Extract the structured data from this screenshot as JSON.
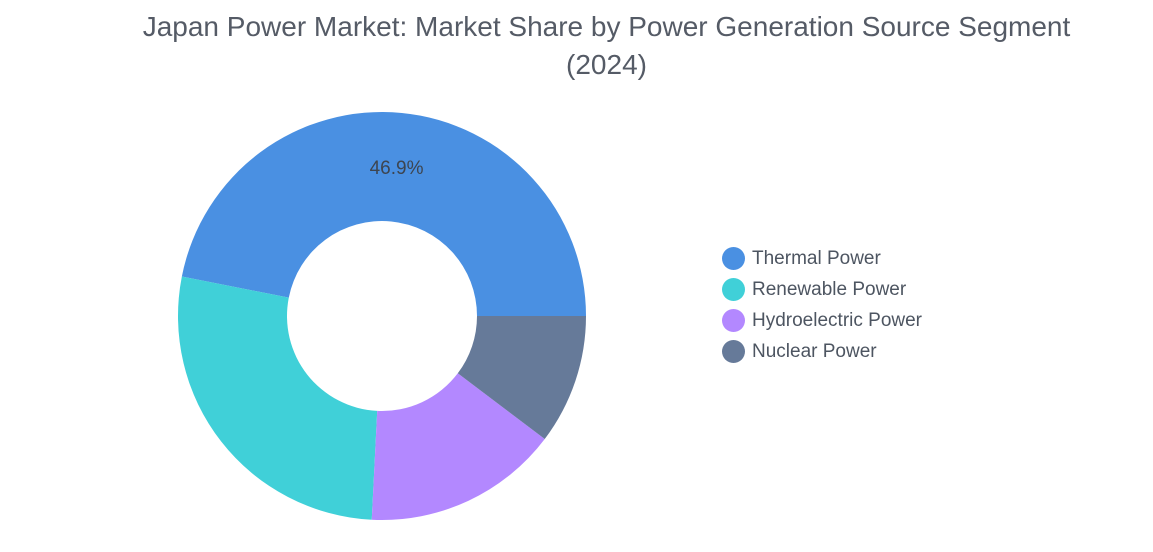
{
  "chart_data": {
    "type": "pie",
    "title": "Japan Power Market: Market Share by Power Generation Source Segment",
    "subtitle": "(2024)",
    "categories": [
      "Thermal Power",
      "Renewable Power",
      "Hydroelectric Power",
      "Nuclear Power"
    ],
    "values": [
      46.9,
      27.3,
      15.5,
      10.3
    ],
    "unit": "%",
    "data_labels": [
      "46.9%",
      "",
      "",
      ""
    ],
    "colors": [
      "#4a90e2",
      "#40d0d8",
      "#b388ff",
      "#667a99"
    ],
    "donut": true,
    "legend_position": "right"
  }
}
